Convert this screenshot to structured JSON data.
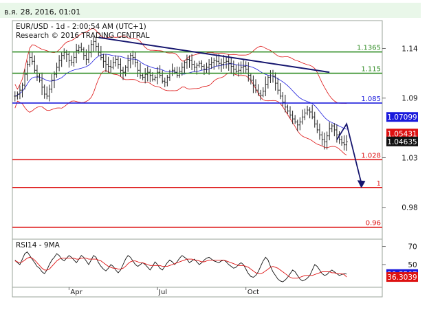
{
  "header": {
    "date": "в.я. 28, 2016, 01:01"
  },
  "chart_data": [
    {
      "type": "candlestick",
      "title": "EUR/USD - 1d - 2:00:54 AM (UTC+1)",
      "subtitle": "Research © 2016 TRADING CENTRAL",
      "y_ticks": [
        "1.14",
        "1.09",
        "1.03",
        "0.98"
      ],
      "y_tick_values": [
        1.14,
        1.09,
        1.03,
        0.98
      ],
      "ylim": [
        0.948,
        1.168
      ],
      "x_labels": [
        "Apr",
        "Jul",
        "Oct"
      ],
      "x_label_index": [
        22,
        58,
        94
      ],
      "bars": 136,
      "close_series": [
        1.092,
        1.094,
        1.098,
        1.103,
        1.114,
        1.124,
        1.131,
        1.127,
        1.118,
        1.112,
        1.108,
        1.101,
        1.094,
        1.092,
        1.099,
        1.108,
        1.114,
        1.121,
        1.128,
        1.133,
        1.136,
        1.134,
        1.128,
        1.126,
        1.131,
        1.138,
        1.141,
        1.139,
        1.133,
        1.129,
        1.136,
        1.144,
        1.147,
        1.142,
        1.136,
        1.131,
        1.127,
        1.124,
        1.122,
        1.121,
        1.126,
        1.129,
        1.124,
        1.118,
        1.116,
        1.121,
        1.128,
        1.133,
        1.131,
        1.126,
        1.118,
        1.113,
        1.111,
        1.114,
        1.116,
        1.113,
        1.109,
        1.111,
        1.116,
        1.113,
        1.107,
        1.106,
        1.111,
        1.115,
        1.118,
        1.116,
        1.113,
        1.117,
        1.121,
        1.126,
        1.129,
        1.128,
        1.124,
        1.121,
        1.123,
        1.125,
        1.122,
        1.119,
        1.121,
        1.124,
        1.126,
        1.128,
        1.127,
        1.125,
        1.124,
        1.126,
        1.127,
        1.125,
        1.122,
        1.119,
        1.117,
        1.118,
        1.121,
        1.122,
        1.119,
        1.113,
        1.108,
        1.103,
        1.098,
        1.095,
        1.093,
        1.097,
        1.104,
        1.111,
        1.115,
        1.112,
        1.105,
        1.098,
        1.092,
        1.086,
        1.081,
        1.077,
        1.073,
        1.069,
        1.066,
        1.063,
        1.066,
        1.071,
        1.075,
        1.078,
        1.076,
        1.071,
        1.064,
        1.058,
        1.053,
        1.048,
        1.046,
        1.052,
        1.059,
        1.062,
        1.058,
        1.053,
        1.048,
        1.045,
        1.043,
        1.046
      ],
      "levels": [
        {
          "label": "1.1365",
          "value": 1.1365,
          "color": "#2e8b22"
        },
        {
          "label": "1.115",
          "value": 1.115,
          "color": "#2e8b22"
        },
        {
          "label": "1.085",
          "value": 1.085,
          "color": "#1a1adc"
        },
        {
          "label": "1.028",
          "value": 1.028,
          "color": "#dd1111"
        },
        {
          "label": "1",
          "value": 1.0,
          "color": "#dd1111"
        },
        {
          "label": "0.96",
          "value": 0.96,
          "color": "#dd1111"
        }
      ],
      "price_tags": [
        {
          "label": "1.07099",
          "value": 1.07099,
          "color": "#1a1adc"
        },
        {
          "label": "1.05431",
          "value": 1.05431,
          "color": "#dd1111"
        },
        {
          "label": "1.04635",
          "value": 1.04635,
          "color": "#111111"
        }
      ],
      "trendline": {
        "start_index": 34,
        "start_value": 1.151,
        "end_index": 128,
        "end_value": 1.116,
        "color": "#15156e"
      },
      "forecast_arrow": {
        "start_index": 131,
        "start_value": 1.048,
        "peak_index": 135,
        "peak_value": 1.064,
        "end_index": 141,
        "end_value": 1.0,
        "color": "#15156e"
      },
      "indicators": [
        "moving-average",
        "bollinger-bands"
      ]
    },
    {
      "type": "line",
      "title": "RSI14 - 9MA",
      "y_ticks": [
        "70",
        "50"
      ],
      "y_tick_values": [
        70,
        50
      ],
      "ylim": [
        25,
        78
      ],
      "series": [
        {
          "values": [
            55,
            52,
            50,
            56,
            62,
            64,
            60,
            56,
            52,
            48,
            46,
            42,
            40,
            44,
            50,
            55,
            58,
            62,
            60,
            56,
            54,
            57,
            60,
            58,
            55,
            52,
            56,
            60,
            58,
            54,
            50,
            55,
            60,
            58,
            52,
            48,
            45,
            43,
            46,
            50,
            48,
            44,
            41,
            44,
            50,
            56,
            60,
            58,
            54,
            50,
            48,
            50,
            52,
            50,
            47,
            44,
            48,
            53,
            50,
            46,
            44,
            48,
            52,
            55,
            53,
            50,
            53,
            57,
            60,
            58,
            56,
            52,
            54,
            56,
            53,
            50,
            52,
            55,
            57,
            58,
            56,
            54,
            53,
            52,
            54,
            55,
            53,
            50,
            48,
            46,
            47,
            50,
            52,
            50,
            45,
            40,
            37,
            36,
            38,
            42,
            48,
            54,
            58,
            55,
            48,
            42,
            38,
            34,
            32,
            31,
            33,
            36,
            40,
            44,
            42,
            38,
            34,
            32,
            33,
            35,
            38,
            44,
            50,
            48,
            44,
            40,
            38,
            39,
            42,
            44,
            42,
            40,
            38,
            39,
            40,
            39.55
          ],
          "color": "#111111"
        },
        {
          "values": [
            54,
            53,
            52,
            53,
            55,
            57,
            58,
            57,
            55,
            52,
            49,
            46,
            44,
            44,
            45,
            48,
            51,
            54,
            56,
            57,
            57,
            57,
            57,
            57,
            57,
            56,
            56,
            57,
            57,
            57,
            56,
            56,
            56,
            56,
            55,
            54,
            52,
            50,
            48,
            47,
            46,
            46,
            45,
            45,
            46,
            48,
            51,
            53,
            54,
            54,
            53,
            52,
            52,
            51,
            50,
            49,
            49,
            49,
            49,
            49,
            48,
            48,
            48,
            49,
            50,
            51,
            52,
            53,
            54,
            55,
            56,
            56,
            56,
            55,
            55,
            54,
            53,
            53,
            54,
            55,
            55,
            55,
            55,
            55,
            55,
            55,
            54,
            53,
            52,
            51,
            50,
            49,
            49,
            49,
            48,
            47,
            45,
            43,
            41,
            40,
            40,
            41,
            43,
            45,
            47,
            48,
            47,
            46,
            44,
            42,
            40,
            38,
            36,
            35,
            35,
            35,
            36,
            37,
            38,
            38,
            38,
            38,
            39,
            40,
            41,
            42,
            42,
            42,
            42,
            41,
            41,
            40,
            40,
            40,
            39,
            36.3
          ],
          "color": "#dd1111"
        }
      ],
      "value_tags": [
        {
          "label": "39.5507",
          "value": 39.5507,
          "color": "#1a1adc"
        },
        {
          "label": "36.3039",
          "value": 36.3039,
          "color": "#dd1111"
        }
      ]
    }
  ]
}
